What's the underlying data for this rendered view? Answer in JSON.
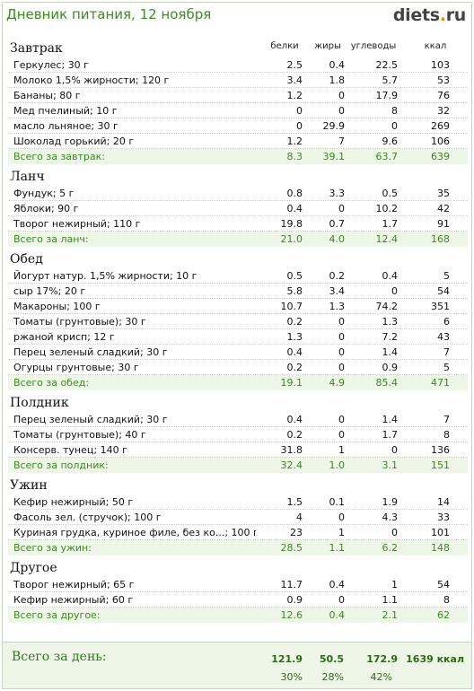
{
  "page": {
    "title": "Дневник питания, 12 ноября",
    "logo_main": "diets",
    "logo_dot": ".",
    "logo_tld": "ru"
  },
  "columns": {
    "protein": "белки",
    "fat": "жиры",
    "carbs": "углеводы",
    "kcal": "ккал"
  },
  "sections": [
    {
      "title": "Завтрак",
      "items": [
        {
          "name": "Геркулес; 30 г",
          "p": "2.5",
          "f": "0.4",
          "c": "22.5",
          "k": "103"
        },
        {
          "name": "Молоко 1,5% жирности; 120 г",
          "p": "3.4",
          "f": "1.8",
          "c": "5.7",
          "k": "53"
        },
        {
          "name": "Бананы; 80 г",
          "p": "1.2",
          "f": "0",
          "c": "17.9",
          "k": "76"
        },
        {
          "name": "Мед пчелиный; 10 г",
          "p": "0",
          "f": "0",
          "c": "8",
          "k": "32"
        },
        {
          "name": "масло льняное; 30 г",
          "p": "0",
          "f": "29.9",
          "c": "0",
          "k": "269"
        },
        {
          "name": "Шоколад горький; 20 г",
          "p": "1.2",
          "f": "7",
          "c": "9.6",
          "k": "106"
        }
      ],
      "total": {
        "name": "Всего за завтрак:",
        "p": "8.3",
        "f": "39.1",
        "c": "63.7",
        "k": "639"
      }
    },
    {
      "title": "Ланч",
      "items": [
        {
          "name": "Фундук; 5 г",
          "p": "0.8",
          "f": "3.3",
          "c": "0.5",
          "k": "35"
        },
        {
          "name": "Яблоки; 90 г",
          "p": "0.4",
          "f": "0",
          "c": "10.2",
          "k": "42"
        },
        {
          "name": "Творог нежирный; 110 г",
          "p": "19.8",
          "f": "0.7",
          "c": "1.7",
          "k": "91"
        }
      ],
      "total": {
        "name": "Всего за ланч:",
        "p": "21.0",
        "f": "4.0",
        "c": "12.4",
        "k": "168"
      }
    },
    {
      "title": "Обед",
      "items": [
        {
          "name": "Йогурт натур. 1,5% жирности; 10 г",
          "p": "0.5",
          "f": "0.2",
          "c": "0.4",
          "k": "5"
        },
        {
          "name": "сыр 17%; 20 г",
          "p": "5.8",
          "f": "3.4",
          "c": "0",
          "k": "54"
        },
        {
          "name": "Макароны; 100 г",
          "p": "10.7",
          "f": "1.3",
          "c": "74.2",
          "k": "351"
        },
        {
          "name": "Томаты (грунтовые); 30 г",
          "p": "0.2",
          "f": "0",
          "c": "1.3",
          "k": "6"
        },
        {
          "name": "ржаной крисп; 12 г",
          "p": "1.3",
          "f": "0",
          "c": "7.2",
          "k": "43"
        },
        {
          "name": "Перец зеленый сладкий; 30 г",
          "p": "0.4",
          "f": "0",
          "c": "1.4",
          "k": "7"
        },
        {
          "name": "Огурцы грунтовые; 30 г",
          "p": "0.2",
          "f": "0",
          "c": "0.9",
          "k": "5"
        }
      ],
      "total": {
        "name": "Всего за обед:",
        "p": "19.1",
        "f": "4.9",
        "c": "85.4",
        "k": "471"
      }
    },
    {
      "title": "Полдник",
      "items": [
        {
          "name": "Перец зеленый сладкий; 30 г",
          "p": "0.4",
          "f": "0",
          "c": "1.4",
          "k": "7"
        },
        {
          "name": "Томаты (грунтовые); 40 г",
          "p": "0.2",
          "f": "0",
          "c": "1.7",
          "k": "8"
        },
        {
          "name": "Консерв. тунец; 140 г",
          "p": "31.8",
          "f": "1",
          "c": "0",
          "k": "136"
        }
      ],
      "total": {
        "name": "Всего за полдник:",
        "p": "32.4",
        "f": "1.0",
        "c": "3.1",
        "k": "151"
      }
    },
    {
      "title": "Ужин",
      "items": [
        {
          "name": "Кефир нежирный; 50 г",
          "p": "1.5",
          "f": "0.1",
          "c": "1.9",
          "k": "14"
        },
        {
          "name": "Фасоль зел. (стручок); 100 г",
          "p": "4",
          "f": "0",
          "c": "4.3",
          "k": "33"
        },
        {
          "name": "Куриная грудка, куриное филе, без ко...; 100 г",
          "p": "23",
          "f": "1",
          "c": "0",
          "k": "101"
        }
      ],
      "total": {
        "name": "Всего за ужин:",
        "p": "28.5",
        "f": "1.1",
        "c": "6.2",
        "k": "148"
      }
    },
    {
      "title": "Другое",
      "items": [
        {
          "name": "Творог нежирный; 65 г",
          "p": "11.7",
          "f": "0.4",
          "c": "1",
          "k": "54"
        },
        {
          "name": "Кефир нежирный; 60 г",
          "p": "0.9",
          "f": "0",
          "c": "1.1",
          "k": "8"
        }
      ],
      "total": {
        "name": "Всего за другое:",
        "p": "12.6",
        "f": "0.4",
        "c": "2.1",
        "k": "62"
      }
    }
  ],
  "day_total": {
    "label": "Всего за день:",
    "p": "121.9",
    "f": "50.5",
    "c": "172.9",
    "k": "1639 ккал",
    "p_pct": "30%",
    "f_pct": "28%",
    "c_pct": "42%"
  },
  "colors": {
    "accent_green": "#3c8c23",
    "total_bg": "#eef6e8",
    "logo_dot": "#e8891f"
  }
}
